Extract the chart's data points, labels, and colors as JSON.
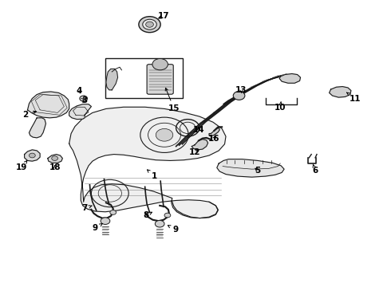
{
  "background_color": "#ffffff",
  "line_color": "#1a1a1a",
  "label_color": "#000000",
  "figsize": [
    4.9,
    3.6
  ],
  "dpi": 100,
  "font_size": 7.5,
  "bold_labels": true,
  "label_positions": {
    "1": [
      0.395,
      0.385,
      0.365,
      0.415
    ],
    "2": [
      0.075,
      0.595,
      0.115,
      0.595
    ],
    "3": [
      0.23,
      0.64,
      0.23,
      0.618
    ],
    "4": [
      0.215,
      0.685,
      0.21,
      0.662
    ],
    "5": [
      0.64,
      0.415,
      0.59,
      0.435
    ],
    "6": [
      0.8,
      0.415,
      0.775,
      0.435
    ],
    "7": [
      0.225,
      0.275,
      0.25,
      0.295
    ],
    "8": [
      0.385,
      0.25,
      0.405,
      0.268
    ],
    "9a": [
      0.235,
      0.19,
      0.253,
      0.215
    ],
    "9b": [
      0.46,
      0.188,
      0.44,
      0.21
    ],
    "10": [
      0.82,
      0.565,
      0.84,
      0.575
    ],
    "11": [
      0.895,
      0.64,
      0.9,
      0.658
    ],
    "12": [
      0.535,
      0.49,
      0.548,
      0.508
    ],
    "13": [
      0.64,
      0.705,
      0.655,
      0.69
    ],
    "14": [
      0.37,
      0.555,
      0.385,
      0.538
    ],
    "15": [
      0.445,
      0.6,
      0.447,
      0.58
    ],
    "16": [
      0.548,
      0.533,
      0.548,
      0.52
    ],
    "17": [
      0.515,
      0.945,
      0.49,
      0.945
    ],
    "18": [
      0.145,
      0.418,
      0.145,
      0.44
    ],
    "19": [
      0.075,
      0.418,
      0.085,
      0.44
    ]
  }
}
